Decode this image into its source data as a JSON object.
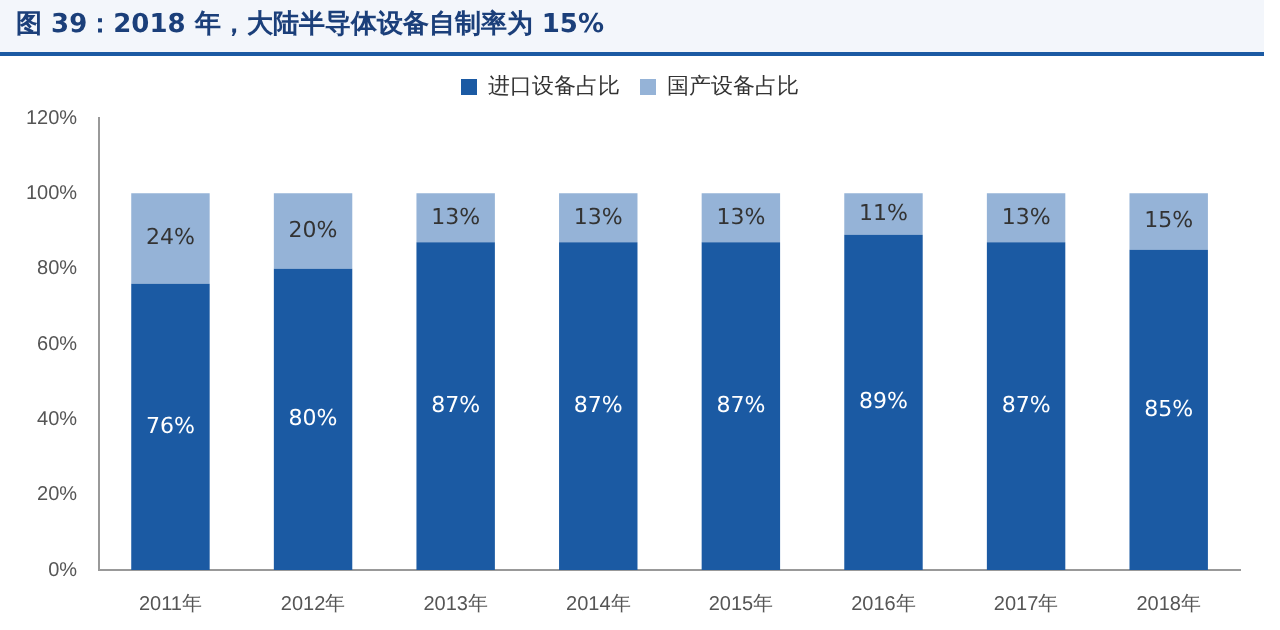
{
  "chart_data": {
    "type": "bar",
    "title": "图 39：2018 年，大陆半导体设备自制率为 15%",
    "stacked": true,
    "legend": "top",
    "grid": false,
    "categories": [
      "2011年",
      "2012年",
      "2013年",
      "2014年",
      "2015年",
      "2016年",
      "2017年",
      "2018年"
    ],
    "series": [
      {
        "name": "进口设备占比",
        "color": "#1b5aa3",
        "values": [
          76,
          80,
          87,
          87,
          87,
          89,
          87,
          85
        ],
        "value_labels": [
          "76%",
          "80%",
          "87%",
          "87%",
          "87%",
          "89%",
          "87%",
          "85%"
        ]
      },
      {
        "name": "国产设备占比",
        "color": "#95b3d7",
        "values": [
          24,
          20,
          13,
          13,
          13,
          11,
          13,
          15
        ],
        "value_labels": [
          "24%",
          "20%",
          "13%",
          "13%",
          "13%",
          "11%",
          "13%",
          "15%"
        ]
      }
    ],
    "ylim": [
      0,
      120
    ],
    "yticks": [
      {
        "value": 0,
        "label": "0%"
      },
      {
        "value": 20,
        "label": "20%"
      },
      {
        "value": 40,
        "label": "40%"
      },
      {
        "value": 60,
        "label": "60%"
      },
      {
        "value": 80,
        "label": "80%"
      },
      {
        "value": 100,
        "label": "100%"
      },
      {
        "value": 120,
        "label": "120%"
      }
    ]
  }
}
